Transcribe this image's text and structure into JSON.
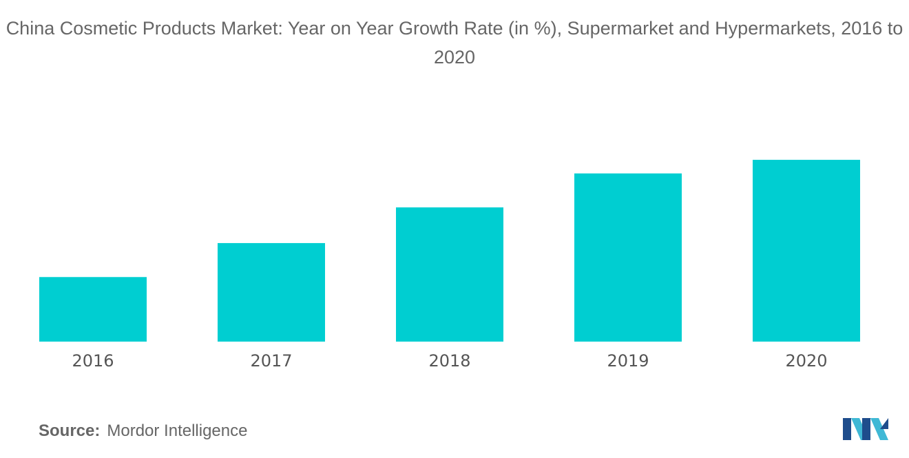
{
  "chart_data": {
    "type": "bar",
    "title": "China Cosmetic Products Market: Year on Year Growth Rate (in %), Supermarket and Hypermarkets, 2016 to 2020",
    "categories": [
      "2016",
      "2017",
      "2018",
      "2019",
      "2020"
    ],
    "values": [
      3.8,
      5.8,
      7.9,
      9.9,
      10.7
    ],
    "ylim": [
      0,
      12
    ],
    "xlabel": "",
    "ylabel": "",
    "grid": false,
    "legend": "none",
    "bar_color": "#00CED1"
  },
  "source": {
    "label": "Source:",
    "text": "Mordor Intelligence"
  },
  "logo": {
    "icon": "mordor-intelligence-logo",
    "colors": [
      "#1E4D8C",
      "#3FB8D5"
    ]
  }
}
